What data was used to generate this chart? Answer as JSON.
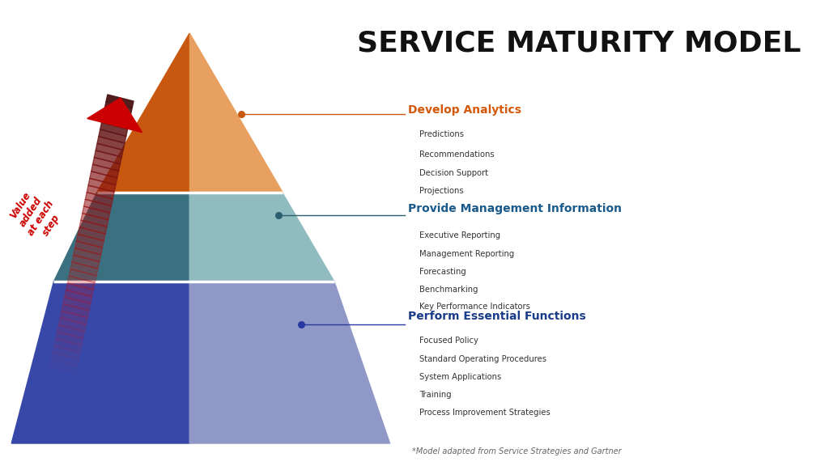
{
  "title": "SERVICE MATURITY MODEL",
  "title_fontsize": 26,
  "background_color": "#ffffff",
  "arrow_label": "Value\nadded\nat each\nstep",
  "arrow_color": "#cc0000",
  "pyramid": {
    "top_layer": {
      "label": "Develop Analytics",
      "label_color": "#d4580a",
      "color_left": "#c85810",
      "color_right": "#e8a060",
      "items": [
        "Predictions",
        "Recommendations",
        "Decision Support",
        "Projections"
      ],
      "dot_color": "#c85810",
      "line_color": "#c85810"
    },
    "mid_layer": {
      "label": "Provide Management Information",
      "label_color": "#1a5a8a",
      "color_left": "#3a7080",
      "color_right": "#90bcc0",
      "items": [
        "Executive Reporting",
        "Management Reporting",
        "Forecasting",
        "Benchmarking",
        "Key Performance Indicators"
      ],
      "dot_color": "#2a6070",
      "line_color": "#2a6070"
    },
    "bot_layer": {
      "label": "Perform Essential Functions",
      "label_color": "#1a3a8a",
      "color_left": "#3848a8",
      "color_right": "#9098c8",
      "items": [
        "Focused Policy",
        "Standard Operating Procedures",
        "System Applications",
        "Training",
        "Process Improvement Strategies"
      ],
      "dot_color": "#2838a0",
      "line_color": "#2838a0"
    }
  },
  "footnote": "*Model adapted from Service Strategies and Gartner",
  "footnote_color": "#666666"
}
